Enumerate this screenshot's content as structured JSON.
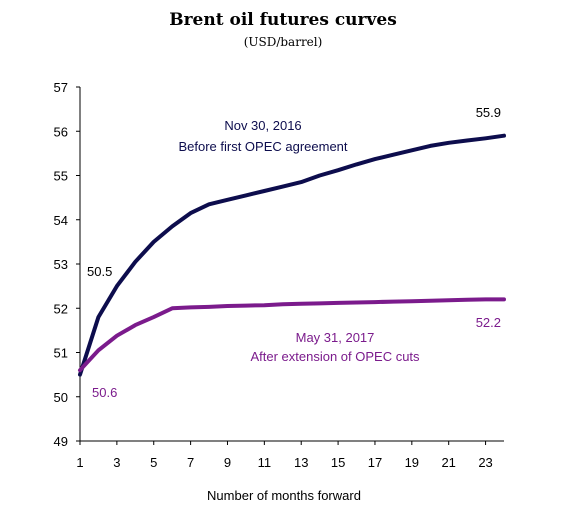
{
  "chart_data": {
    "type": "line",
    "title": "Brent oil futures curves",
    "subtitle": "(USD/barrel)",
    "xlabel": "Number of months forward",
    "ylabel": "",
    "xlim": [
      1,
      24
    ],
    "ylim": [
      49,
      57
    ],
    "x_ticks": [
      "1",
      "3",
      "5",
      "7",
      "9",
      "11",
      "13",
      "15",
      "17",
      "19",
      "21",
      "23"
    ],
    "y_ticks": [
      "49",
      "50",
      "51",
      "52",
      "53",
      "54",
      "55",
      "56",
      "57"
    ],
    "grid": false,
    "series": [
      {
        "color": "#0d0d4d",
        "x": [
          1,
          2,
          3,
          4,
          5,
          6,
          7,
          8,
          9,
          10,
          11,
          12,
          13,
          14,
          15,
          16,
          17,
          18,
          19,
          20,
          21,
          22,
          23,
          24
        ],
        "values": [
          50.5,
          51.8,
          52.5,
          53.05,
          53.5,
          53.85,
          54.15,
          54.35,
          54.45,
          54.55,
          54.65,
          54.75,
          54.85,
          55.0,
          55.12,
          55.25,
          55.37,
          55.47,
          55.57,
          55.67,
          55.74,
          55.79,
          55.84,
          55.9
        ],
        "labels": [
          "Nov 30, 2016",
          "Before first OPEC agreement"
        ],
        "start_label": "50.5",
        "end_label": "55.9"
      },
      {
        "color": "#7b1b8c",
        "x": [
          1,
          2,
          3,
          4,
          5,
          6,
          7,
          8,
          9,
          10,
          11,
          12,
          13,
          14,
          15,
          16,
          17,
          18,
          19,
          20,
          21,
          22,
          23,
          24
        ],
        "values": [
          50.6,
          51.05,
          51.38,
          51.62,
          51.8,
          52.0,
          52.02,
          52.03,
          52.05,
          52.06,
          52.07,
          52.09,
          52.1,
          52.11,
          52.12,
          52.13,
          52.14,
          52.15,
          52.16,
          52.17,
          52.18,
          52.19,
          52.2,
          52.2
        ],
        "labels": [
          "May 31, 2017",
          "After extension of OPEC cuts"
        ],
        "start_label": "50.6",
        "end_label": "52.2"
      }
    ]
  }
}
